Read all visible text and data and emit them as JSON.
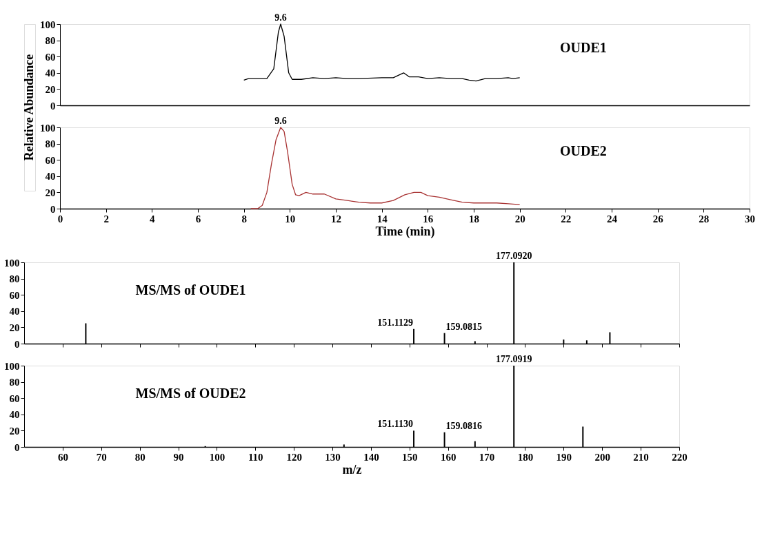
{
  "chart_data": [
    {
      "type": "line",
      "xlim": [
        0,
        30
      ],
      "ylim": [
        0,
        100
      ],
      "yticks": [
        0,
        20,
        40,
        60,
        80,
        100
      ],
      "tick_labels": "y",
      "grid": false,
      "legend": false,
      "series": [
        {
          "name": "OUDE1",
          "color": "#000000",
          "x": [
            8.0,
            8.2,
            9.0,
            9.3,
            9.5,
            9.6,
            9.75,
            9.95,
            10.1,
            10.5,
            11.0,
            11.5,
            12.0,
            12.5,
            13.0,
            14.0,
            14.5,
            14.8,
            14.95,
            15.2,
            15.6,
            16.0,
            16.5,
            17.0,
            17.5,
            17.8,
            18.1,
            18.5,
            19.0,
            19.5,
            19.7,
            20.0
          ],
          "values": [
            31,
            33,
            33,
            45,
            90,
            100,
            85,
            40,
            32,
            32,
            34,
            33,
            34,
            33,
            33,
            34,
            34,
            38,
            40,
            35,
            35,
            33,
            34,
            33,
            33,
            31,
            30,
            33,
            33,
            34,
            33,
            34
          ]
        }
      ],
      "annotations": [
        {
          "text": "9.6",
          "x": 9.6,
          "y": 100
        }
      ]
    },
    {
      "type": "line",
      "xlim": [
        0,
        30
      ],
      "xticks": [
        0,
        2,
        4,
        6,
        8,
        10,
        12,
        14,
        16,
        18,
        20,
        22,
        24,
        26,
        28,
        30
      ],
      "ylim": [
        0,
        100
      ],
      "yticks": [
        0,
        20,
        40,
        60,
        80,
        100
      ],
      "xlabel": "Time (min)",
      "ylabel": "Relative Abundance",
      "grid": false,
      "legend": false,
      "series": [
        {
          "name": "OUDE2",
          "color": "#a83232",
          "x": [
            8.3,
            8.6,
            8.8,
            9.0,
            9.2,
            9.4,
            9.6,
            9.75,
            9.9,
            10.1,
            10.25,
            10.4,
            10.7,
            11.0,
            11.5,
            12.0,
            12.5,
            13.0,
            13.5,
            14.0,
            14.5,
            15.0,
            15.4,
            15.7,
            16.0,
            16.5,
            17.0,
            17.5,
            18.0,
            19.0,
            19.5,
            20.0
          ],
          "values": [
            0,
            0,
            4,
            20,
            55,
            85,
            100,
            95,
            70,
            30,
            17,
            16,
            20,
            18,
            18,
            12,
            10,
            8,
            7,
            7,
            10,
            17,
            20,
            20,
            16,
            14,
            11,
            8,
            7,
            7,
            6,
            5
          ]
        }
      ],
      "annotations": [
        {
          "text": "9.6",
          "x": 9.6,
          "y": 100
        }
      ]
    },
    {
      "type": "bar",
      "xlim": [
        50,
        220
      ],
      "xticks": [
        60,
        70,
        80,
        90,
        100,
        110,
        120,
        130,
        140,
        150,
        160,
        170,
        180,
        190,
        200,
        210,
        220
      ],
      "ylim": [
        0,
        100
      ],
      "yticks": [
        0,
        20,
        40,
        60,
        80,
        100
      ],
      "tick_labels": "y",
      "grid": false,
      "legend": false,
      "x": [
        66,
        151.1129,
        159.0815,
        167,
        177.092,
        190,
        196,
        202
      ],
      "values": [
        25,
        18,
        13,
        3,
        100,
        5,
        4,
        14
      ],
      "color": "#000000",
      "annotations": [
        "MS/MS of OUDE1",
        {
          "text": "151.1129",
          "x": 151.1129,
          "y": 18
        },
        {
          "text": "159.0815",
          "x": 159.0815,
          "y": 13
        },
        {
          "text": "177.0920",
          "x": 177.092,
          "y": 100
        }
      ]
    },
    {
      "type": "bar",
      "xlim": [
        50,
        220
      ],
      "xticks": [
        60,
        70,
        80,
        90,
        100,
        110,
        120,
        130,
        140,
        150,
        160,
        170,
        180,
        190,
        200,
        210,
        220
      ],
      "ylim": [
        0,
        100
      ],
      "yticks": [
        0,
        20,
        40,
        60,
        80,
        100
      ],
      "xlabel": "m/z",
      "grid": false,
      "legend": false,
      "x": [
        97,
        133,
        151.113,
        159.0816,
        167,
        177.0919,
        195
      ],
      "values": [
        1,
        3,
        20,
        18,
        7,
        100,
        25
      ],
      "color": "#000000",
      "annotations": [
        "MS/MS of OUDE2",
        {
          "text": "151.1130",
          "x": 151.113,
          "y": 20
        },
        {
          "text": "159.0816",
          "x": 159.0816,
          "y": 18
        },
        {
          "text": "177.0919",
          "x": 177.0919,
          "y": 100
        }
      ]
    }
  ]
}
